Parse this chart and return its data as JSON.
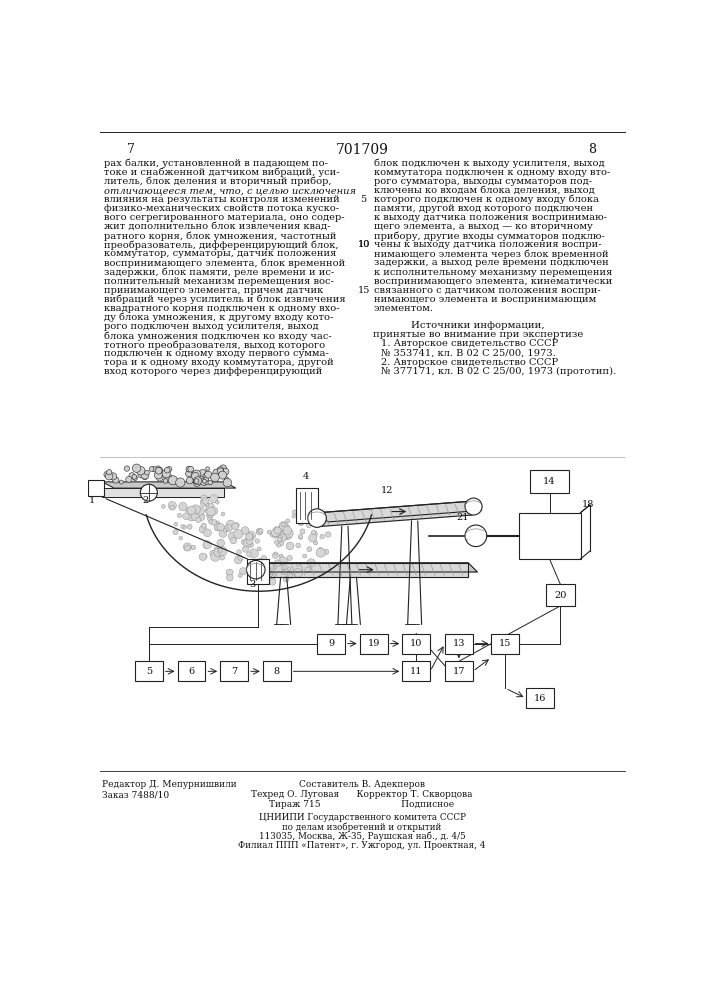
{
  "page_number_left": "7",
  "page_number_center": "701709",
  "page_number_right": "8",
  "col1_text": [
    "рах балки, установленной в падающем по-",
    "токе и снабженной датчиком вибраций, уси-",
    "литель, блок деления и вторичный прибор,",
    "отличающееся тем, что, с целью исключения",
    "влияния на результаты контроля изменений",
    "физико-механических свойств потока куско-",
    "вого сегрегированного материала, оно содер-",
    "жит дополнительно блок извлечения квад-",
    "ратного корня, блок умножения, частотный",
    "преобразователь, дифференцирующий блок,",
    "коммутатор, сумматоры, датчик положения",
    "воспринимающего элемента, блок временной",
    "задержки, блок памяти, реле времени и ис-",
    "полнительный механизм перемещения вос-",
    "принимающего элемента, причем датчик",
    "вибраций через усилитель и блок извлечения",
    "квадратного корня подключен к одному вхо-",
    "ду блока умножения, к другому входу кото-",
    "рого подключен выход усилителя, выход",
    "блока умножения подключен ко входу час-",
    "тотного преобразователя, выход которого",
    "подключен к одному входу первого сумма-",
    "тора и к одному входу коммутатора, другой",
    "вход которого через дифференцирующий"
  ],
  "col2_text": [
    "блок подключен к выходу усилителя, выход",
    "коммутатора подключен к одному входу вто-",
    "рого сумматора, выходы сумматоров под-",
    "ключены ко входам блока деления, выход",
    "которого подключен к одному входу блока",
    "памяти, другой вход которого подключен",
    "к выходу датчика положения воспринимаю-",
    "щего элемента, а выход — ко вторичному",
    "прибору, другие входы сумматоров подклю-",
    "чены к выходу датчика положения воспри-",
    "нимающего элемента через блок временной",
    "задержки, а выход реле времени подключен",
    "к исполнительному механизму перемещения",
    "воспринимающего элемента, кинематически",
    "связанного с датчиком положения воспри-",
    "нимающего элемента и воспринимающим",
    "элементом."
  ],
  "sources_title": "Источники информации,",
  "sources_subtitle": "принятые во внимание при экспертизе",
  "source1": "1. Авторское свидетельство СССР",
  "source1b": "№ 353741, кл. В 02 С 25/00, 1973.",
  "source2": "2. Авторское свидетельство СССР",
  "source2b": "№ 377171, кл. В 02 С 25/00, 1973 (прототип).",
  "footer_left_lines": [
    "Редактор Д. Мепурнишвили",
    "Заказ 7488/10"
  ],
  "footer_center_lines": [
    "Составитель В. Адекперов",
    "Техред О. Луговая      Корректор Т. Скворцова",
    "Тираж 715                            Подписное"
  ],
  "footer_institution_lines": [
    "ЦНИИПИ Государственного комитета СССР",
    "по делам изобретений и открытий",
    "113035, Москва, Ж-35, Раушская наб., д. 4/5",
    "Филиал ППП «Патент», г. Ужгород, ул. Проектная, 4"
  ],
  "bg_color": "#ffffff",
  "text_color": "#111111",
  "line_color": "#222222"
}
